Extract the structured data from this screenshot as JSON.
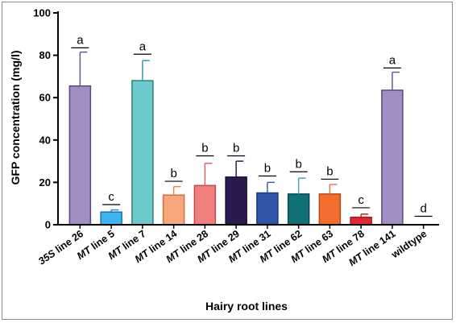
{
  "chart_data": {
    "type": "bar",
    "xlabel": "Hairy root lines",
    "ylabel": "GFP concentration (mg/l)",
    "ylim": [
      0,
      100
    ],
    "yticks": [
      0,
      20,
      40,
      60,
      80,
      100
    ],
    "grid": false,
    "categories": [
      {
        "prefix": "35S",
        "label": " line 26"
      },
      {
        "prefix": "MT",
        "label": " line 5"
      },
      {
        "prefix": "MT",
        "label": " line 7"
      },
      {
        "prefix": "MT",
        "label": " line 14"
      },
      {
        "prefix": "MT",
        "label": " line 28"
      },
      {
        "prefix": "MT",
        "label": " line 29"
      },
      {
        "prefix": "MT",
        "label": " line 31"
      },
      {
        "prefix": "MT",
        "label": " line 62"
      },
      {
        "prefix": "MT",
        "label": " line 63"
      },
      {
        "prefix": "MT",
        "label": " line 78"
      },
      {
        "prefix": "MT",
        "label": " line 141"
      },
      {
        "prefix": "",
        "label": "wildtype"
      }
    ],
    "values": [
      65.5,
      6,
      68,
      14,
      18.5,
      22.5,
      15,
      14.5,
      14.5,
      3.5,
      63.5,
      0
    ],
    "errors": [
      16,
      1,
      9.5,
      4,
      10.5,
      7.5,
      5,
      7.5,
      4.5,
      1.5,
      8.5,
      0
    ],
    "significance": [
      "a",
      "c",
      "a",
      "b",
      "b",
      "b",
      "b",
      "b",
      "b",
      "c",
      "a",
      "d"
    ],
    "sig_line_y": [
      83.5,
      9.5,
      80.5,
      20.5,
      32.5,
      32.5,
      23,
      25,
      21.5,
      8,
      74,
      4
    ],
    "colors": [
      "#a48dc4",
      "#3db4f0",
      "#6cc9cc",
      "#f6a77c",
      "#f07f80",
      "#2c1a4e",
      "#3256a6",
      "#107276",
      "#f26d2e",
      "#e8242c",
      "#a48dc4",
      "#ffffff"
    ],
    "edge_colors": [
      "#5b4784",
      "#1f6fa8",
      "#2f7f84",
      "#d0703e",
      "#c04a4c",
      "#1a0f33",
      "#1d3678",
      "#0a4a4d",
      "#b44a18",
      "#a81419",
      "#5b4784",
      "#000000"
    ],
    "error_colors": [
      "#6b579b",
      "#2a85c0",
      "#3a9a9e",
      "#e08a5a",
      "#e06365",
      "#2c1a4e",
      "#3a5fae",
      "#4fa4a8",
      "#e57a3e",
      "#c81d23",
      "#6b579b",
      "#000000"
    ]
  }
}
